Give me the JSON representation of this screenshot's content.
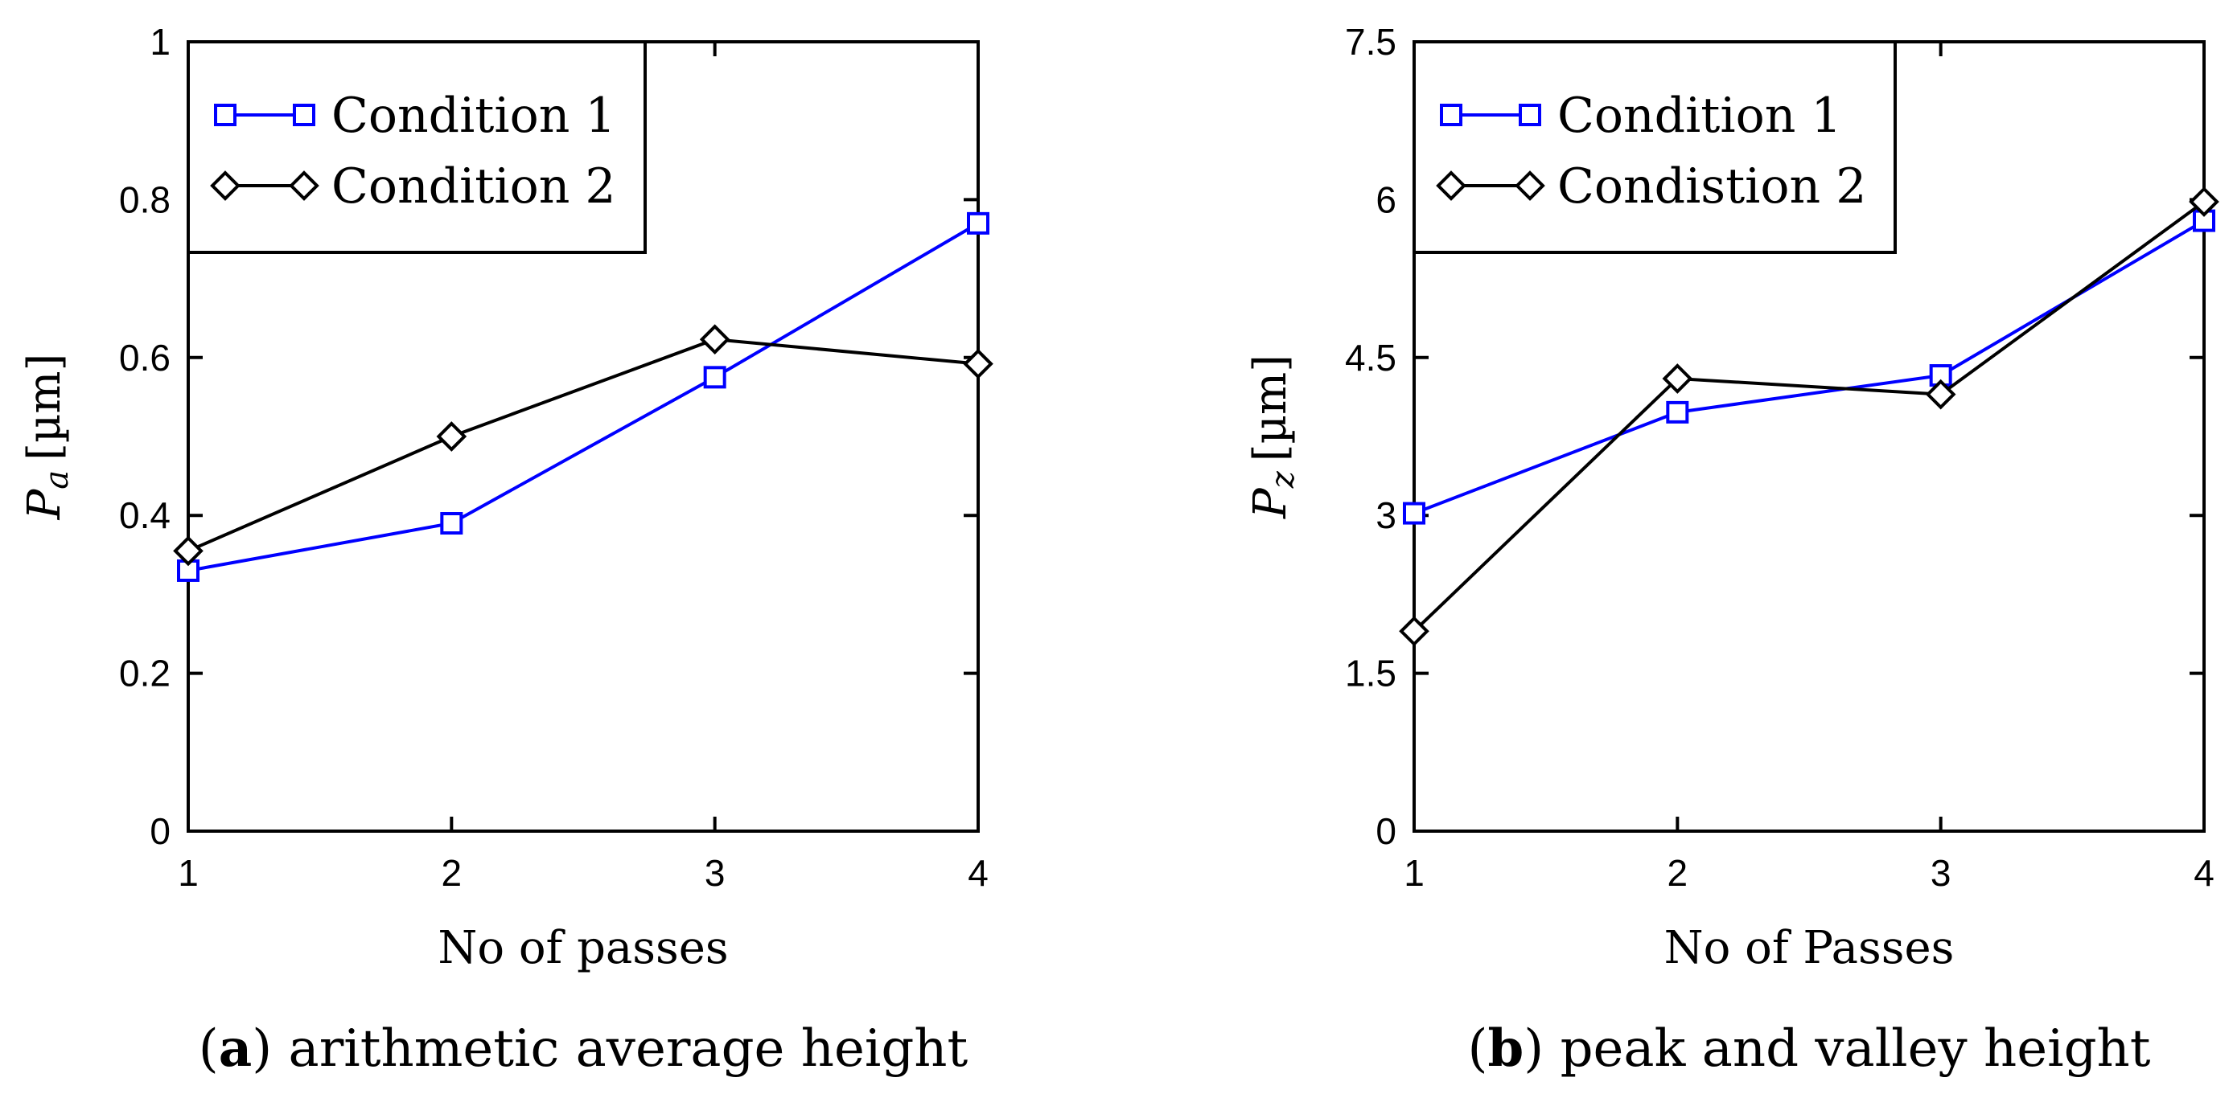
{
  "chart_data": [
    {
      "type": "line",
      "panel": "a",
      "caption_label": "a",
      "caption_text": "arithmetic average height",
      "xlabel": "No of passes",
      "ylabel_symbol": "P",
      "ylabel_subscript": "a",
      "ylabel_unit": "[µm]",
      "x": [
        1,
        2,
        3,
        4
      ],
      "xticks": [
        "1",
        "2",
        "3",
        "4"
      ],
      "xlim": [
        1,
        4
      ],
      "ylim": [
        0,
        1
      ],
      "yticks": [
        0,
        0.2,
        0.4,
        0.6,
        0.8,
        1
      ],
      "ytick_labels": [
        "0",
        "0.2",
        "0.4",
        "0.6",
        "0.8",
        "1"
      ],
      "legend_position": "top-left",
      "series": [
        {
          "name": "Condition 1",
          "color": "#0000ff",
          "marker": "square",
          "values": [
            0.33,
            0.39,
            0.575,
            0.77
          ]
        },
        {
          "name": "Condition 2",
          "color": "#000000",
          "marker": "diamond",
          "values": [
            0.355,
            0.5,
            0.623,
            0.592
          ]
        }
      ]
    },
    {
      "type": "line",
      "panel": "b",
      "caption_label": "b",
      "caption_text": "peak and valley height",
      "xlabel": "No of Passes",
      "ylabel_symbol": "P",
      "ylabel_subscript": "z",
      "ylabel_unit": "[µm]",
      "x": [
        1,
        2,
        3,
        4
      ],
      "xticks": [
        "1",
        "2",
        "3",
        "4"
      ],
      "xlim": [
        1,
        4
      ],
      "ylim": [
        0,
        7.5
      ],
      "yticks": [
        0,
        1.5,
        3,
        4.5,
        6,
        7.5
      ],
      "ytick_labels": [
        "0",
        "1.5",
        "3",
        "4.5",
        "6",
        "7.5"
      ],
      "legend_position": "top-left",
      "series": [
        {
          "name": "Condition 1",
          "color": "#0000ff",
          "marker": "square",
          "values": [
            3.02,
            3.98,
            4.33,
            5.8
          ]
        },
        {
          "name": "Condistion 2",
          "color": "#000000",
          "marker": "diamond",
          "values": [
            1.9,
            4.3,
            4.15,
            5.98
          ]
        }
      ]
    }
  ]
}
